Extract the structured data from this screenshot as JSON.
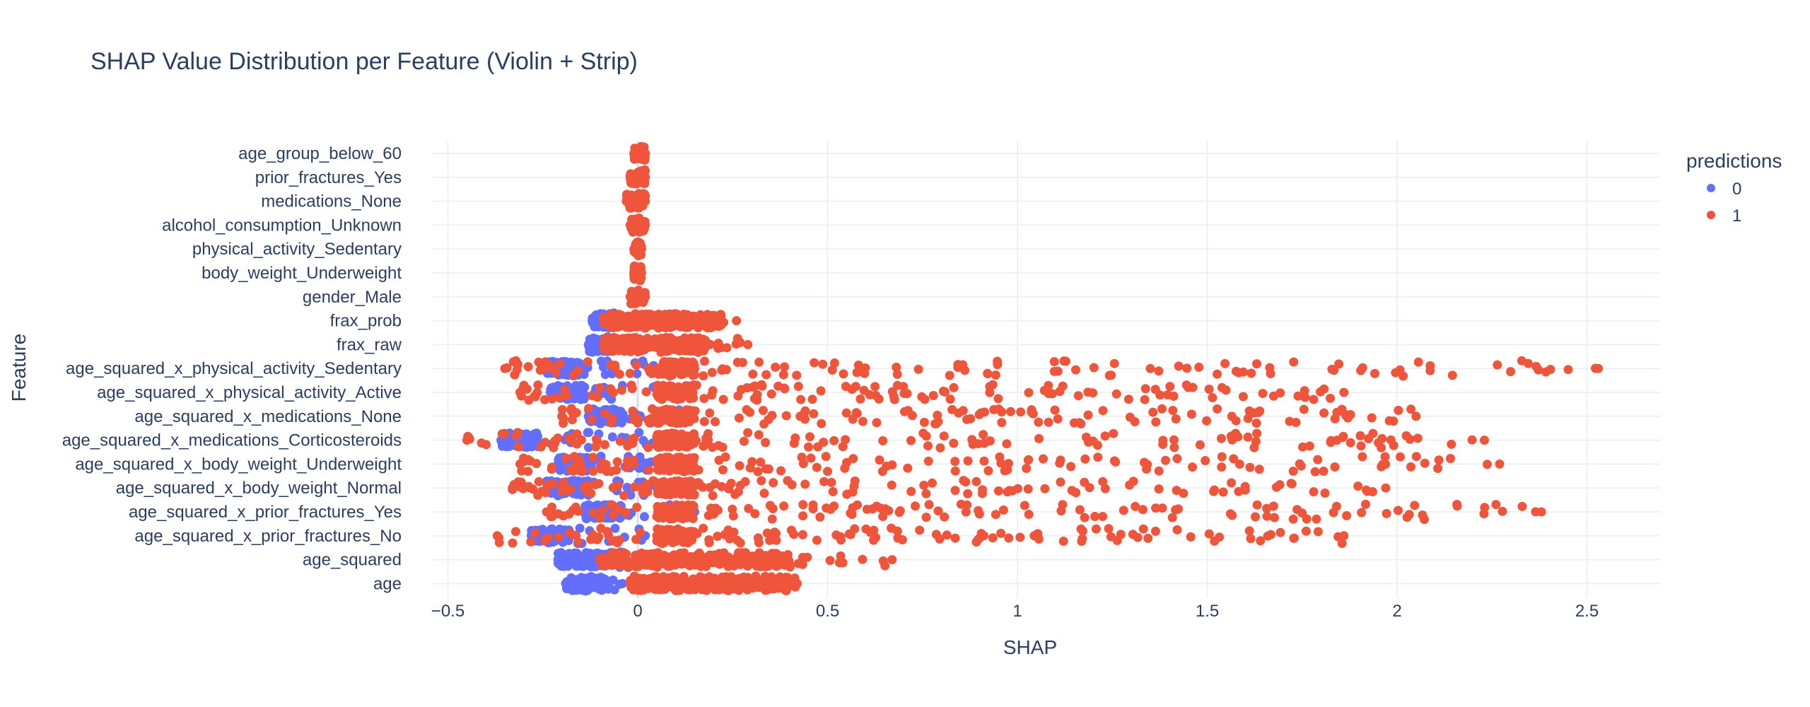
{
  "chart_data": {
    "type": "scatter",
    "subtype": "strip",
    "title": "SHAP Value Distribution per Feature (Violin + Strip)",
    "xlabel": "SHAP",
    "ylabel": "Feature",
    "xlim": [
      -0.5,
      2.7
    ],
    "x_ticks": [
      -0.5,
      0,
      0.5,
      1,
      1.5,
      2,
      2.5
    ],
    "x_tick_labels": [
      "−0.5",
      "0",
      "0.5",
      "1",
      "1.5",
      "2",
      "2.5"
    ],
    "grid": true,
    "legend": {
      "title": "predictions",
      "position": "right",
      "entries": [
        {
          "label": "0",
          "color": "#636efa"
        },
        {
          "label": "1",
          "color": "#ef553b"
        }
      ]
    },
    "features": [
      "age_group_below_60",
      "prior_fractures_Yes",
      "medications_None",
      "alcohol_consumption_Unknown",
      "physical_activity_Sedentary",
      "body_weight_Underweight",
      "gender_Male",
      "frax_prob",
      "frax_raw",
      "age_squared_x_physical_activity_Sedentary",
      "age_squared_x_physical_activity_Active",
      "age_squared_x_medications_None",
      "age_squared_x_medications_Corticosteroids",
      "age_squared_x_body_weight_Underweight",
      "age_squared_x_body_weight_Normal",
      "age_squared_x_prior_fractures_Yes",
      "age_squared_x_prior_fractures_No",
      "age_squared",
      "age"
    ],
    "series": [
      {
        "name": "0",
        "color": "#636efa",
        "distributions": [
          null,
          null,
          null,
          null,
          null,
          null,
          null,
          {
            "min": -0.12,
            "max": 0.12,
            "core": [
              -0.12,
              -0.05
            ]
          },
          {
            "min": -0.13,
            "max": 0.1,
            "core": [
              -0.13,
              -0.06
            ]
          },
          {
            "min": -0.24,
            "max": 0.08,
            "core": [
              -0.24,
              -0.15
            ]
          },
          {
            "min": -0.23,
            "max": 0.09,
            "core": [
              -0.23,
              -0.14
            ]
          },
          {
            "min": -0.13,
            "max": 0.13,
            "core": [
              -0.13,
              -0.04
            ]
          },
          {
            "min": -0.36,
            "max": 0.07,
            "core": [
              -0.36,
              -0.26
            ]
          },
          {
            "min": -0.21,
            "max": 0.09,
            "core": [
              -0.21,
              -0.12
            ]
          },
          {
            "min": -0.24,
            "max": 0.09,
            "core": [
              -0.24,
              -0.13
            ]
          },
          {
            "min": -0.14,
            "max": 0.15,
            "core": [
              -0.14,
              -0.04
            ]
          },
          {
            "min": -0.28,
            "max": 0.02,
            "core": [
              -0.28,
              -0.18
            ]
          },
          {
            "min": -0.21,
            "max": -0.04,
            "core": [
              -0.21,
              -0.08
            ]
          },
          {
            "min": -0.19,
            "max": -0.04,
            "core": [
              -0.19,
              -0.08
            ]
          }
        ]
      },
      {
        "name": "1",
        "color": "#ef553b",
        "distributions": [
          {
            "min": -0.01,
            "max": 0.02,
            "core": [
              -0.01,
              0.02
            ]
          },
          {
            "min": -0.02,
            "max": 0.02,
            "core": [
              -0.02,
              0.02
            ]
          },
          {
            "min": -0.03,
            "max": 0.02,
            "core": [
              -0.03,
              0.02
            ]
          },
          {
            "min": -0.02,
            "max": 0.02,
            "core": [
              -0.02,
              0.02
            ]
          },
          {
            "min": -0.01,
            "max": 0.01,
            "core": [
              -0.01,
              0.01
            ]
          },
          {
            "min": -0.01,
            "max": 0.01,
            "core": [
              -0.01,
              0.01
            ]
          },
          {
            "min": -0.02,
            "max": 0.02,
            "core": [
              -0.02,
              0.02
            ]
          },
          {
            "min": -0.09,
            "max": 0.26,
            "core": [
              -0.09,
              0.22
            ]
          },
          {
            "min": -0.09,
            "max": 0.29,
            "core": [
              -0.09,
              0.18
            ]
          },
          {
            "min": -0.35,
            "max": 2.53,
            "core": [
              0.05,
              0.15
            ]
          },
          {
            "min": -0.31,
            "max": 1.86,
            "core": [
              0.05,
              0.15
            ]
          },
          {
            "min": -0.2,
            "max": 2.05,
            "core": [
              0.05,
              0.15
            ]
          },
          {
            "min": -0.45,
            "max": 2.23,
            "core": [
              0.05,
              0.15
            ]
          },
          {
            "min": -0.31,
            "max": 2.27,
            "core": [
              0.05,
              0.15
            ]
          },
          {
            "min": -0.33,
            "max": 1.97,
            "core": [
              0.05,
              0.15
            ]
          },
          {
            "min": -0.24,
            "max": 2.38,
            "core": [
              0.05,
              0.15
            ]
          },
          {
            "min": -0.37,
            "max": 1.86,
            "core": [
              0.05,
              0.15
            ]
          },
          {
            "min": -0.1,
            "max": 0.67,
            "core": [
              -0.08,
              0.4
            ]
          },
          {
            "min": -0.02,
            "max": 0.42,
            "core": [
              0.0,
              0.4
            ]
          }
        ]
      }
    ]
  }
}
